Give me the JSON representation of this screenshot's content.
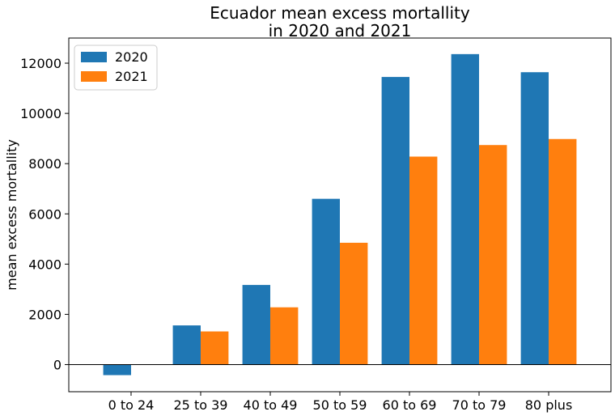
{
  "chart_data": {
    "type": "bar",
    "title_lines": [
      "Ecuador mean excess mortallity",
      "in 2020 and 2021"
    ],
    "xlabel": "",
    "ylabel": "mean excess mortallity",
    "categories": [
      "0 to 24",
      "25 to 39",
      "40 to 49",
      "50 to 59",
      "60 to 69",
      "70 to 79",
      "80 plus"
    ],
    "series": [
      {
        "name": "2020",
        "color": "#1f77b4",
        "values": [
          -420,
          1560,
          3170,
          6600,
          11450,
          12360,
          11640
        ]
      },
      {
        "name": "2021",
        "color": "#ff7f0e",
        "values": [
          0,
          1320,
          2280,
          4850,
          8280,
          8740,
          8980
        ]
      }
    ],
    "ylim": [
      -1080,
      13000
    ],
    "yticks": [
      0,
      2000,
      4000,
      6000,
      8000,
      10000,
      12000
    ],
    "zero_line": true,
    "grid": false,
    "legend_position": "top-left"
  }
}
